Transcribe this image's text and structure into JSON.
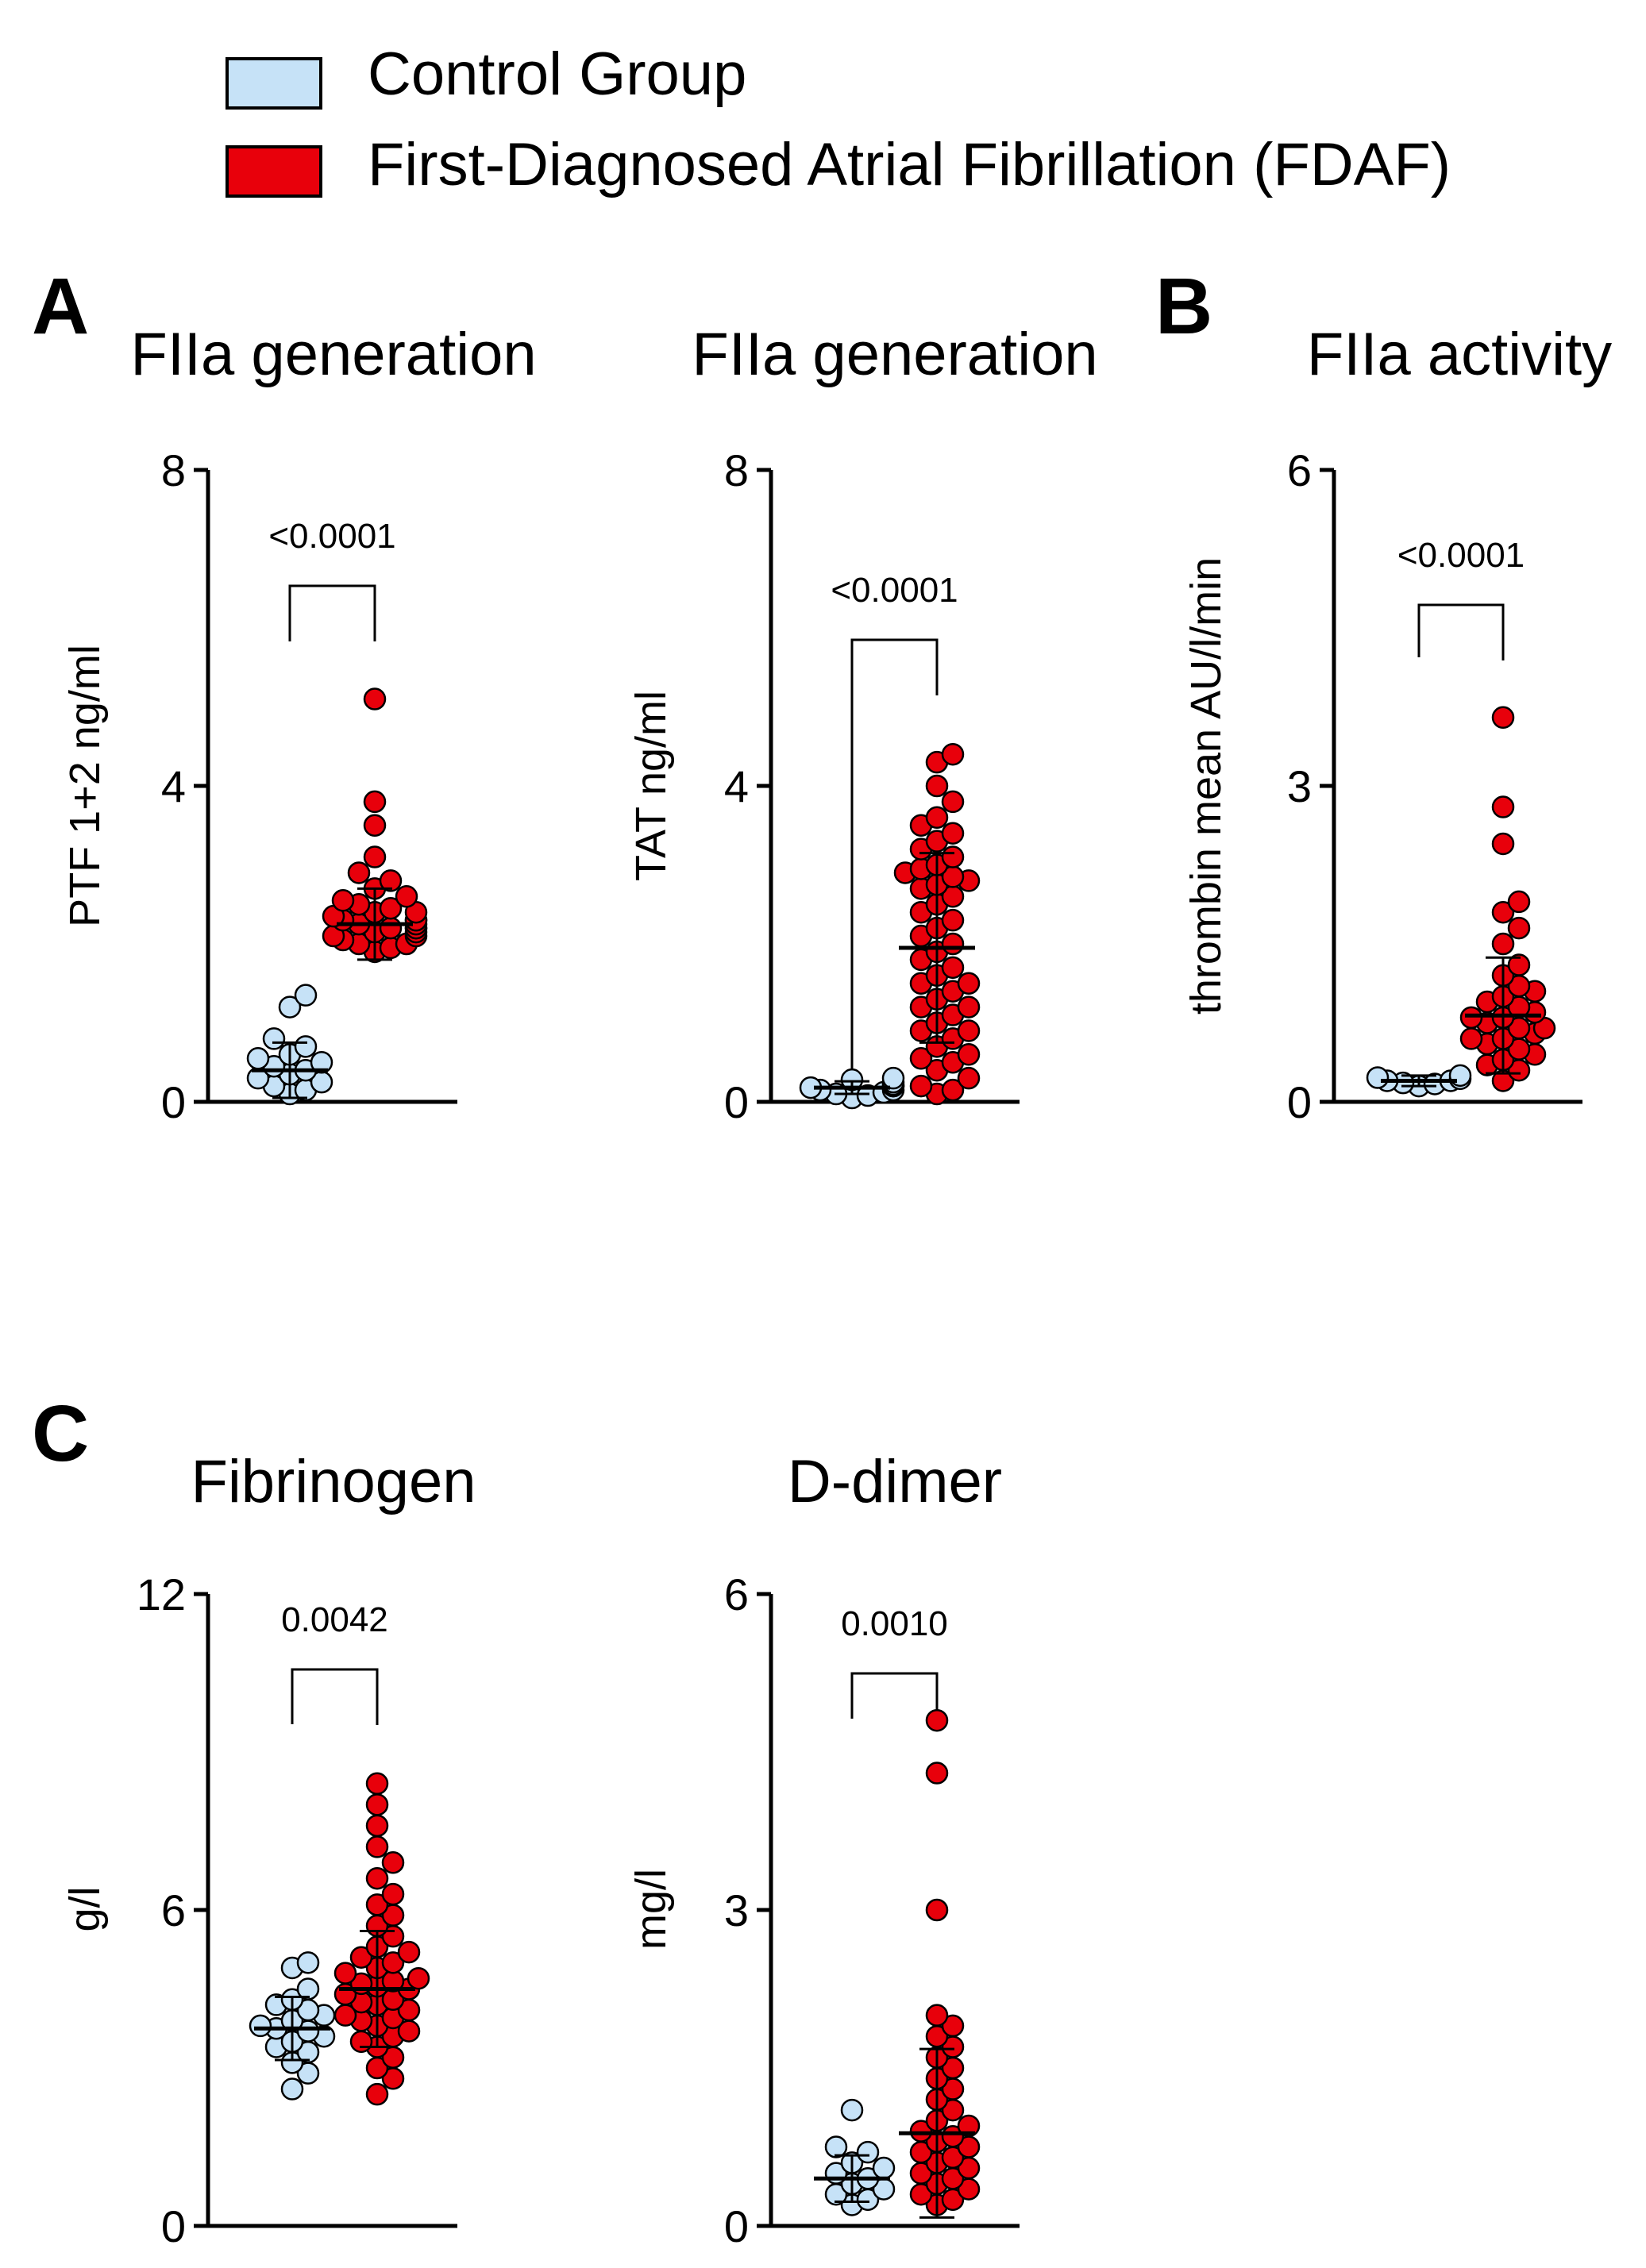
{
  "legend": {
    "items": [
      {
        "label": "Control Group",
        "color": "#c6e2f7"
      },
      {
        "label": "First-Diagnosed Atrial Fibrillation (FDAF)",
        "color": "#e8000b"
      }
    ]
  },
  "panel_letters": {
    "a": "A",
    "b": "B",
    "c": "C"
  },
  "chart_data": [
    {
      "type": "scatter",
      "title": "FIIa generation",
      "ylabel": "PTF 1+2 ng/ml",
      "ylim": [
        0,
        8
      ],
      "yticks": [
        "0",
        "4",
        "8"
      ],
      "pvalue": "<0.0001",
      "groups": [
        {
          "name": "Control Group",
          "mean": 0.4,
          "sd": 0.35,
          "values": [
            0.1,
            0.15,
            0.2,
            0.25,
            0.3,
            0.35,
            0.4,
            0.45,
            0.5,
            0.55,
            0.6,
            0.7,
            0.8,
            1.2,
            1.35
          ]
        },
        {
          "name": "FDAF",
          "mean": 2.25,
          "sd": 0.45,
          "values": [
            1.9,
            1.95,
            2.0,
            2.0,
            2.05,
            2.1,
            2.1,
            2.15,
            2.15,
            2.2,
            2.2,
            2.2,
            2.25,
            2.25,
            2.3,
            2.3,
            2.3,
            2.35,
            2.4,
            2.4,
            2.45,
            2.5,
            2.55,
            2.6,
            2.7,
            2.8,
            2.9,
            3.1,
            3.5,
            3.8,
            5.1
          ]
        }
      ]
    },
    {
      "type": "scatter",
      "title": "FIIa generation",
      "ylabel": "TAT ng/ml",
      "ylim": [
        0,
        8
      ],
      "yticks": [
        "0",
        "4",
        "8"
      ],
      "pvalue": "<0.0001",
      "groups": [
        {
          "name": "Control Group",
          "mean": 0.18,
          "sd": 0.08,
          "values": [
            0.05,
            0.08,
            0.1,
            0.12,
            0.15,
            0.15,
            0.18,
            0.2,
            0.2,
            0.22,
            0.25,
            0.28,
            0.3
          ]
        },
        {
          "name": "FDAF",
          "mean": 1.95,
          "sd": 1.2,
          "values": [
            0.1,
            0.15,
            0.2,
            0.3,
            0.4,
            0.5,
            0.6,
            0.7,
            0.8,
            0.9,
            1.0,
            1.1,
            1.2,
            1.3,
            1.4,
            1.5,
            1.6,
            1.7,
            1.8,
            1.9,
            2.0,
            2.1,
            2.2,
            2.3,
            2.4,
            2.5,
            2.6,
            2.7,
            2.8,
            2.9,
            3.0,
            3.1,
            3.2,
            3.3,
            3.4,
            3.5,
            3.6,
            3.8,
            4.0,
            4.3,
            4.4,
            2.85,
            2.95,
            2.75,
            1.5,
            1.2,
            0.9,
            0.55
          ]
        }
      ]
    },
    {
      "type": "scatter",
      "title": "FIIa activity",
      "ylabel": "thrombin mean AU/l/min",
      "ylim": [
        0,
        6
      ],
      "yticks": [
        "0",
        "3",
        "6"
      ],
      "pvalue": "<0.0001",
      "groups": [
        {
          "name": "Control Group",
          "mean": 0.2,
          "sd": 0.05,
          "values": [
            0.15,
            0.17,
            0.18,
            0.2,
            0.2,
            0.22,
            0.23,
            0.25
          ]
        },
        {
          "name": "FDAF",
          "mean": 0.82,
          "sd": 0.55,
          "values": [
            0.2,
            0.3,
            0.35,
            0.4,
            0.45,
            0.5,
            0.55,
            0.6,
            0.6,
            0.65,
            0.7,
            0.7,
            0.75,
            0.8,
            0.8,
            0.85,
            0.9,
            0.95,
            1.0,
            1.05,
            1.1,
            1.2,
            1.3,
            1.5,
            1.65,
            1.8,
            1.9,
            2.45,
            2.8,
            3.65
          ]
        }
      ]
    },
    {
      "type": "scatter",
      "title": "Fibrinogen",
      "ylabel": "g/l",
      "ylim": [
        0,
        12
      ],
      "yticks": [
        "0",
        "6",
        "12"
      ],
      "pvalue": "0.0042",
      "groups": [
        {
          "name": "Control Group",
          "mean": 3.75,
          "sd": 0.6,
          "values": [
            2.6,
            2.9,
            3.1,
            3.3,
            3.4,
            3.5,
            3.6,
            3.7,
            3.75,
            3.8,
            3.9,
            4.0,
            4.1,
            4.2,
            4.3,
            4.5,
            4.9,
            5.0
          ]
        },
        {
          "name": "FDAF",
          "mean": 4.5,
          "sd": 1.1,
          "values": [
            2.5,
            2.8,
            3.0,
            3.2,
            3.4,
            3.5,
            3.6,
            3.7,
            3.8,
            3.9,
            4.0,
            4.1,
            4.2,
            4.3,
            4.4,
            4.5,
            4.6,
            4.7,
            4.8,
            4.9,
            5.0,
            5.1,
            5.2,
            5.3,
            5.5,
            5.7,
            5.9,
            6.1,
            6.3,
            6.6,
            6.9,
            7.2,
            7.6,
            8.0,
            8.4,
            4.25,
            4.55,
            3.95,
            4.65
          ]
        }
      ]
    },
    {
      "type": "scatter",
      "title": "D-dimer",
      "ylabel": "mg/l",
      "ylim": [
        0,
        6
      ],
      "yticks": [
        "0",
        "3",
        "6"
      ],
      "pvalue": "0.0010",
      "groups": [
        {
          "name": "Control Group",
          "mean": 0.45,
          "sd": 0.22,
          "values": [
            0.2,
            0.25,
            0.3,
            0.35,
            0.4,
            0.45,
            0.5,
            0.55,
            0.6,
            0.7,
            0.75,
            1.1
          ]
        },
        {
          "name": "FDAF",
          "mean": 0.88,
          "sd": 0.8,
          "values": [
            0.2,
            0.25,
            0.3,
            0.35,
            0.4,
            0.45,
            0.5,
            0.55,
            0.6,
            0.65,
            0.7,
            0.75,
            0.8,
            0.85,
            0.9,
            0.95,
            1.0,
            1.1,
            1.2,
            1.3,
            1.4,
            1.5,
            1.6,
            1.7,
            1.8,
            1.9,
            2.0,
            3.0,
            4.3,
            4.8
          ]
        }
      ]
    }
  ]
}
